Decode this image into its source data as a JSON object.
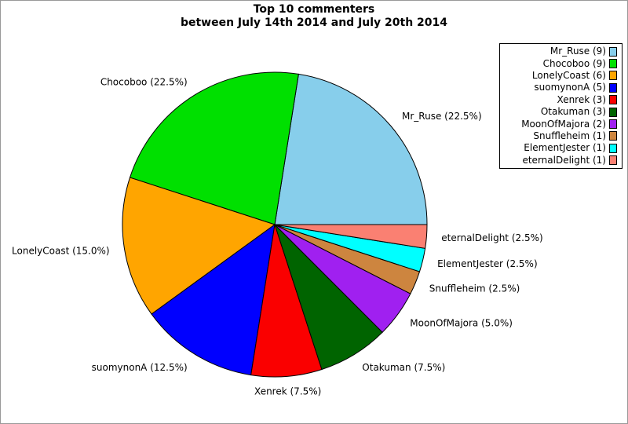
{
  "chart": {
    "title_line1": "Top 10 commenters",
    "title_line2": "between July 14th 2014 and July 20th 2014"
  },
  "chart_data": {
    "type": "pie",
    "title": "Top 10 commenters between July 14th 2014 and July 20th 2014",
    "start_angle_deg": 0,
    "direction": "counterclockwise",
    "total": 40,
    "legend_position": "upper right",
    "legend_marker_side": "right",
    "slice_edge_color": "#000000",
    "slices": [
      {
        "name": "Mr_Ruse",
        "value": 9,
        "percent": 22.5,
        "label": "Mr_Ruse (22.5%)",
        "legend_label": "Mr_Ruse (9)",
        "color": "#87CEEB"
      },
      {
        "name": "Chocoboo",
        "value": 9,
        "percent": 22.5,
        "label": "Chocoboo (22.5%)",
        "legend_label": "Chocoboo (9)",
        "color": "#00E000"
      },
      {
        "name": "LonelyCoast",
        "value": 6,
        "percent": 15.0,
        "label": "LonelyCoast (15.0%)",
        "legend_label": "LonelyCoast (6)",
        "color": "#FFA500"
      },
      {
        "name": "suomynonA",
        "value": 5,
        "percent": 12.5,
        "label": "suomynonA (12.5%)",
        "legend_label": "suomynonA (5)",
        "color": "#0000FF"
      },
      {
        "name": "Xenrek",
        "value": 3,
        "percent": 7.5,
        "label": "Xenrek (7.5%)",
        "legend_label": "Xenrek (3)",
        "color": "#FA0000"
      },
      {
        "name": "Otakuman",
        "value": 3,
        "percent": 7.5,
        "label": "Otakuman (7.5%)",
        "legend_label": "Otakuman (3)",
        "color": "#006400"
      },
      {
        "name": "MoonOfMajora",
        "value": 2,
        "percent": 5.0,
        "label": "MoonOfMajora (5.0%)",
        "legend_label": "MoonOfMajora (2)",
        "color": "#A020F0"
      },
      {
        "name": "Snuffleheim",
        "value": 1,
        "percent": 2.5,
        "label": "Snuffleheim (2.5%)",
        "legend_label": "Snuffleheim (1)",
        "color": "#CD853F"
      },
      {
        "name": "ElementJester",
        "value": 1,
        "percent": 2.5,
        "label": "ElementJester (2.5%)",
        "legend_label": "ElementJester (1)",
        "color": "#00FFFF"
      },
      {
        "name": "eternalDelight",
        "value": 1,
        "percent": 2.5,
        "label": "eternalDelight (2.5%)",
        "legend_label": "eternalDelight (1)",
        "color": "#FA8072"
      }
    ]
  }
}
